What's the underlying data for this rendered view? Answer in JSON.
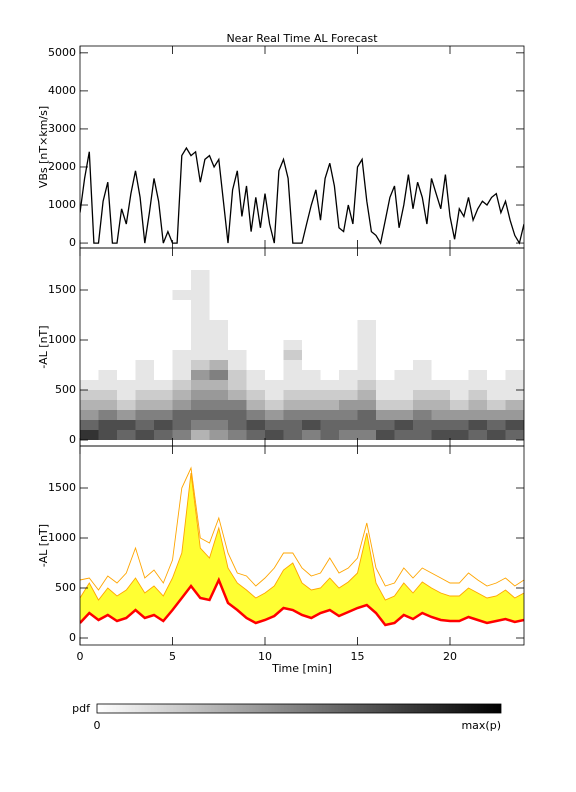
{
  "chart_data": [
    {
      "type": "line",
      "title": "Near Real Time AL Forecast",
      "ylabel": "VBs [nT×km/s]",
      "color": "#000000",
      "xlim": [
        0,
        24
      ],
      "ylim": [
        -130,
        5180
      ],
      "yticks": [
        0,
        1000,
        2000,
        3000,
        4000,
        5000
      ],
      "x": [
        0,
        0.25,
        0.5,
        0.75,
        1,
        1.25,
        1.5,
        1.75,
        2,
        2.25,
        2.5,
        2.75,
        3,
        3.25,
        3.5,
        3.75,
        4,
        4.25,
        4.5,
        4.75,
        5,
        5.25,
        5.5,
        5.75,
        6,
        6.25,
        6.5,
        6.75,
        7,
        7.25,
        7.5,
        7.75,
        8,
        8.25,
        8.5,
        8.75,
        9,
        9.25,
        9.5,
        9.75,
        10,
        10.25,
        10.5,
        10.75,
        11,
        11.25,
        11.5,
        11.75,
        12,
        12.25,
        12.5,
        12.75,
        13,
        13.25,
        13.5,
        13.75,
        14,
        14.25,
        14.5,
        14.75,
        15,
        15.25,
        15.5,
        15.75,
        16,
        16.25,
        16.5,
        16.75,
        17,
        17.25,
        17.5,
        17.75,
        18,
        18.25,
        18.5,
        18.75,
        19,
        19.25,
        19.5,
        19.75,
        20,
        20.25,
        20.5,
        20.75,
        21,
        21.25,
        21.5,
        21.75,
        22,
        22.25,
        22.5,
        22.75,
        23,
        23.25,
        23.5,
        23.75,
        24
      ],
      "values": [
        800,
        1700,
        2400,
        0,
        0,
        1100,
        1600,
        0,
        0,
        900,
        500,
        1300,
        1900,
        1200,
        0,
        800,
        1700,
        1100,
        0,
        300,
        0,
        0,
        2300,
        2500,
        2300,
        2400,
        1600,
        2200,
        2300,
        2000,
        2200,
        1100,
        0,
        1400,
        1900,
        700,
        1500,
        300,
        1200,
        400,
        1300,
        500,
        0,
        1900,
        2200,
        1700,
        0,
        0,
        0,
        500,
        1000,
        1400,
        600,
        1700,
        2100,
        1500,
        400,
        300,
        1000,
        500,
        2000,
        2200,
        1100,
        300,
        200,
        0,
        600,
        1200,
        1500,
        400,
        1000,
        1800,
        900,
        1600,
        1200,
        500,
        1700,
        1300,
        900,
        1800,
        700,
        100,
        900,
        700,
        1200,
        600,
        900,
        1100,
        1000,
        1200,
        1300,
        800,
        1100,
        600,
        200,
        0,
        500
      ]
    },
    {
      "type": "heatmap",
      "ylabel": "-AL [nT]",
      "xlim": [
        0,
        24
      ],
      "ylim": [
        -60,
        1920
      ],
      "yticks": [
        0,
        500,
        1000,
        1500
      ],
      "xbins": [
        0,
        1,
        2,
        3,
        4,
        5,
        6,
        7,
        8,
        9,
        10,
        11,
        12,
        13,
        14,
        15,
        16,
        17,
        18,
        19,
        20,
        21,
        22,
        23,
        24
      ],
      "ybins": [
        0,
        100,
        200,
        300,
        400,
        500,
        600,
        700,
        800,
        900,
        1000,
        1100,
        1200,
        1300,
        1400,
        1500,
        1600,
        1700
      ],
      "z": [
        [
          0.8,
          0.7,
          0.6,
          0.7,
          0.6,
          0.5,
          0.3,
          0.4,
          0.5,
          0.6,
          0.7,
          0.6,
          0.5,
          0.6,
          0.5,
          0.5,
          0.7,
          0.6,
          0.6,
          0.7,
          0.7,
          0.6,
          0.7,
          0.6
        ],
        [
          0.6,
          0.7,
          0.7,
          0.6,
          0.7,
          0.6,
          0.5,
          0.5,
          0.6,
          0.7,
          0.6,
          0.6,
          0.7,
          0.6,
          0.6,
          0.6,
          0.6,
          0.7,
          0.6,
          0.6,
          0.6,
          0.7,
          0.6,
          0.7
        ],
        [
          0.4,
          0.5,
          0.4,
          0.5,
          0.5,
          0.6,
          0.6,
          0.6,
          0.6,
          0.5,
          0.4,
          0.5,
          0.5,
          0.5,
          0.5,
          0.6,
          0.4,
          0.4,
          0.5,
          0.4,
          0.4,
          0.4,
          0.4,
          0.4
        ],
        [
          0.3,
          0.3,
          0.2,
          0.3,
          0.3,
          0.4,
          0.5,
          0.5,
          0.5,
          0.3,
          0.2,
          0.3,
          0.3,
          0.3,
          0.4,
          0.4,
          0.2,
          0.2,
          0.3,
          0.3,
          0.2,
          0.3,
          0.2,
          0.3
        ],
        [
          0.2,
          0.2,
          0.1,
          0.2,
          0.2,
          0.3,
          0.4,
          0.4,
          0.3,
          0.2,
          0.1,
          0.2,
          0.2,
          0.2,
          0.2,
          0.3,
          0.1,
          0.1,
          0.2,
          0.2,
          0.1,
          0.2,
          0.1,
          0.1
        ],
        [
          0.1,
          0.1,
          0.1,
          0.1,
          0.1,
          0.2,
          0.3,
          0.3,
          0.2,
          0.1,
          0.1,
          0.1,
          0.1,
          0.1,
          0.1,
          0.2,
          0.1,
          0.1,
          0.1,
          0.1,
          0.1,
          0.1,
          0.1,
          0.1
        ],
        [
          0,
          0.1,
          0,
          0.1,
          0,
          0.1,
          0.4,
          0.5,
          0.2,
          0.1,
          0,
          0.1,
          0.1,
          0,
          0.1,
          0.1,
          0,
          0.1,
          0.1,
          0,
          0,
          0.1,
          0,
          0.1
        ],
        [
          0,
          0,
          0,
          0.1,
          0,
          0.1,
          0.2,
          0.3,
          0.1,
          0,
          0,
          0.1,
          0,
          0,
          0,
          0.1,
          0,
          0,
          0.1,
          0,
          0,
          0,
          0,
          0
        ],
        [
          0,
          0,
          0,
          0,
          0,
          0.1,
          0.1,
          0.1,
          0.1,
          0,
          0,
          0.2,
          0,
          0,
          0,
          0.1,
          0,
          0,
          0,
          0,
          0,
          0,
          0,
          0
        ],
        [
          0,
          0,
          0,
          0,
          0,
          0,
          0.1,
          0.1,
          0,
          0,
          0,
          0.1,
          0,
          0,
          0,
          0.1,
          0,
          0,
          0,
          0,
          0,
          0,
          0,
          0
        ],
        [
          0,
          0,
          0,
          0,
          0,
          0,
          0.1,
          0.1,
          0,
          0,
          0,
          0,
          0,
          0,
          0,
          0.1,
          0,
          0,
          0,
          0,
          0,
          0,
          0,
          0
        ],
        [
          0,
          0,
          0,
          0,
          0,
          0,
          0.1,
          0.1,
          0,
          0,
          0,
          0,
          0,
          0,
          0,
          0.1,
          0,
          0,
          0,
          0,
          0,
          0,
          0,
          0
        ],
        [
          0,
          0,
          0,
          0,
          0,
          0,
          0.1,
          0,
          0,
          0,
          0,
          0,
          0,
          0,
          0,
          0,
          0,
          0,
          0,
          0,
          0,
          0,
          0,
          0
        ],
        [
          0,
          0,
          0,
          0,
          0,
          0,
          0.1,
          0,
          0,
          0,
          0,
          0,
          0,
          0,
          0,
          0,
          0,
          0,
          0,
          0,
          0,
          0,
          0,
          0
        ],
        [
          0,
          0,
          0,
          0,
          0,
          0.1,
          0.1,
          0,
          0,
          0,
          0,
          0,
          0,
          0,
          0,
          0,
          0,
          0,
          0,
          0,
          0,
          0,
          0,
          0
        ],
        [
          0,
          0,
          0,
          0,
          0,
          0,
          0.1,
          0,
          0,
          0,
          0,
          0,
          0,
          0,
          0,
          0,
          0,
          0,
          0,
          0,
          0,
          0,
          0,
          0
        ],
        [
          0,
          0,
          0,
          0,
          0,
          0,
          0.1,
          0,
          0,
          0,
          0,
          0,
          0,
          0,
          0,
          0,
          0,
          0,
          0,
          0,
          0,
          0,
          0,
          0
        ]
      ]
    },
    {
      "type": "band",
      "ylabel": "-AL [nT]",
      "xlabel": "Time [min]",
      "fill_color": "#ffff33",
      "xlim": [
        0,
        24
      ],
      "ylim": [
        -70,
        1920
      ],
      "yticks": [
        0,
        500,
        1000,
        1500
      ],
      "xticks": [
        0,
        5,
        10,
        15,
        20
      ],
      "x": [
        0,
        0.5,
        1,
        1.5,
        2,
        2.5,
        3,
        3.5,
        4,
        4.5,
        5,
        5.5,
        6,
        6.5,
        7,
        7.5,
        8,
        8.5,
        9,
        9.5,
        10,
        10.5,
        11,
        11.5,
        12,
        12.5,
        13,
        13.5,
        14,
        14.5,
        15,
        15.5,
        16,
        16.5,
        17,
        17.5,
        18,
        18.5,
        19,
        19.5,
        20,
        20.5,
        21,
        21.5,
        22,
        22.5,
        23,
        23.5,
        24
      ],
      "series": [
        {
          "color": "#ff0000",
          "values": [
            150,
            250,
            180,
            230,
            170,
            200,
            280,
            200,
            230,
            170,
            280,
            400,
            520,
            400,
            380,
            580,
            350,
            280,
            200,
            150,
            180,
            220,
            300,
            280,
            230,
            200,
            250,
            280,
            220,
            260,
            300,
            330,
            250,
            130,
            150,
            230,
            190,
            250,
            210,
            180,
            170,
            170,
            210,
            180,
            150,
            170,
            190,
            160,
            180
          ]
        },
        {
          "color": "#ffa500",
          "values": [
            400,
            550,
            380,
            500,
            420,
            480,
            600,
            450,
            520,
            420,
            600,
            850,
            1650,
            900,
            800,
            1100,
            700,
            550,
            480,
            400,
            450,
            520,
            680,
            750,
            550,
            480,
            500,
            600,
            500,
            560,
            650,
            1050,
            550,
            380,
            420,
            550,
            450,
            560,
            500,
            450,
            420,
            420,
            500,
            450,
            400,
            420,
            480,
            400,
            450
          ]
        },
        {
          "color": "#ffa500",
          "values": [
            580,
            600,
            480,
            620,
            550,
            650,
            900,
            600,
            680,
            550,
            780,
            1500,
            1700,
            1000,
            950,
            1200,
            850,
            650,
            620,
            520,
            600,
            700,
            850,
            850,
            700,
            620,
            650,
            800,
            650,
            700,
            800,
            1150,
            700,
            520,
            550,
            700,
            600,
            700,
            650,
            600,
            550,
            550,
            650,
            580,
            520,
            550,
            600,
            520,
            580
          ]
        }
      ]
    }
  ],
  "colorbar": {
    "title": "pdf",
    "min_label": "0",
    "max_label": "max(p)"
  }
}
